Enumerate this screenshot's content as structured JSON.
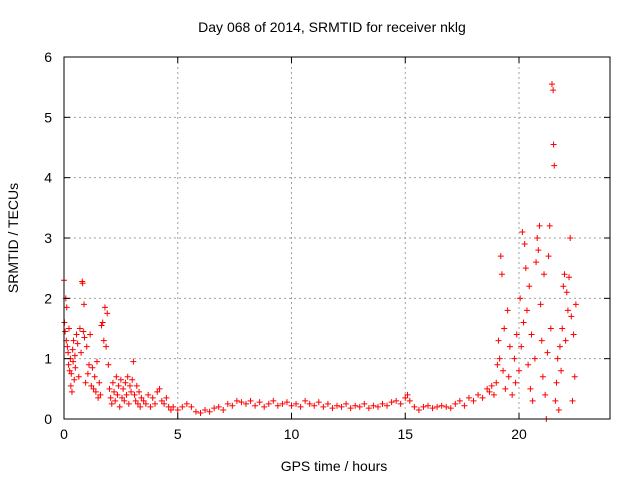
{
  "chart_data": {
    "type": "scatter",
    "title": "Day 068 of 2014, SRMTID for receiver nklg",
    "xlabel": "GPS time / hours",
    "ylabel": "SRMTID / TECUs",
    "xlim": [
      0,
      24
    ],
    "ylim": [
      0,
      6
    ],
    "xticks": [
      0,
      5,
      10,
      15,
      20
    ],
    "yticks": [
      0,
      1,
      2,
      3,
      4,
      5,
      6
    ],
    "grid": true,
    "marker": "+",
    "series": [
      {
        "name": "SRMTID",
        "color": "#ff0000",
        "points": [
          [
            0.0,
            2.3
          ],
          [
            0.02,
            1.6
          ],
          [
            0.05,
            1.45
          ],
          [
            0.08,
            2.0
          ],
          [
            0.1,
            1.3
          ],
          [
            0.12,
            1.85
          ],
          [
            0.15,
            1.2
          ],
          [
            0.18,
            1.1
          ],
          [
            0.2,
            0.9
          ],
          [
            0.22,
            1.5
          ],
          [
            0.25,
            0.8
          ],
          [
            0.28,
            1.0
          ],
          [
            0.3,
            0.55
          ],
          [
            0.32,
            0.75
          ],
          [
            0.35,
            0.45
          ],
          [
            0.38,
            1.15
          ],
          [
            0.4,
            0.95
          ],
          [
            0.42,
            1.3
          ],
          [
            0.45,
            0.65
          ],
          [
            0.48,
            1.05
          ],
          [
            0.5,
            0.85
          ],
          [
            0.55,
            1.4
          ],
          [
            0.6,
            1.25
          ],
          [
            0.65,
            0.7
          ],
          [
            0.7,
            1.5
          ],
          [
            0.75,
            1.1
          ],
          [
            0.8,
            2.28
          ],
          [
            0.82,
            2.25
          ],
          [
            0.85,
            1.45
          ],
          [
            0.88,
            1.9
          ],
          [
            0.9,
            1.35
          ],
          [
            0.95,
            0.6
          ],
          [
            1.0,
            1.2
          ],
          [
            1.05,
            0.75
          ],
          [
            1.1,
            0.9
          ],
          [
            1.15,
            1.4
          ],
          [
            1.2,
            0.55
          ],
          [
            1.25,
            0.85
          ],
          [
            1.3,
            0.5
          ],
          [
            1.35,
            0.7
          ],
          [
            1.4,
            0.45
          ],
          [
            1.45,
            0.95
          ],
          [
            1.5,
            0.35
          ],
          [
            1.55,
            0.6
          ],
          [
            1.6,
            0.4
          ],
          [
            1.65,
            1.55
          ],
          [
            1.7,
            1.6
          ],
          [
            1.75,
            1.3
          ],
          [
            1.8,
            1.85
          ],
          [
            1.85,
            1.2
          ],
          [
            1.9,
            1.75
          ],
          [
            1.95,
            0.9
          ],
          [
            2.0,
            0.5
          ],
          [
            2.05,
            0.35
          ],
          [
            2.1,
            0.25
          ],
          [
            2.15,
            0.6
          ],
          [
            2.2,
            0.45
          ],
          [
            2.25,
            0.3
          ],
          [
            2.3,
            0.7
          ],
          [
            2.35,
            0.4
          ],
          [
            2.4,
            0.55
          ],
          [
            2.45,
            0.2
          ],
          [
            2.5,
            0.65
          ],
          [
            2.55,
            0.35
          ],
          [
            2.6,
            0.5
          ],
          [
            2.65,
            0.3
          ],
          [
            2.7,
            0.6
          ],
          [
            2.75,
            0.4
          ],
          [
            2.8,
            0.7
          ],
          [
            2.85,
            0.25
          ],
          [
            2.9,
            0.55
          ],
          [
            2.95,
            0.45
          ],
          [
            3.0,
            0.65
          ],
          [
            3.05,
            0.95
          ],
          [
            3.1,
            0.4
          ],
          [
            3.15,
            0.3
          ],
          [
            3.2,
            0.55
          ],
          [
            3.25,
            0.25
          ],
          [
            3.3,
            0.45
          ],
          [
            3.35,
            0.2
          ],
          [
            3.4,
            0.35
          ],
          [
            3.5,
            0.3
          ],
          [
            3.6,
            0.25
          ],
          [
            3.7,
            0.4
          ],
          [
            3.8,
            0.2
          ],
          [
            3.9,
            0.35
          ],
          [
            4.0,
            0.25
          ],
          [
            4.1,
            0.45
          ],
          [
            4.2,
            0.5
          ],
          [
            4.3,
            0.3
          ],
          [
            4.4,
            0.25
          ],
          [
            4.5,
            0.35
          ],
          [
            4.6,
            0.2
          ],
          [
            4.7,
            0.15
          ],
          [
            4.8,
            0.2
          ],
          [
            5.0,
            0.15
          ],
          [
            5.2,
            0.2
          ],
          [
            5.4,
            0.25
          ],
          [
            5.6,
            0.2
          ],
          [
            5.8,
            0.12
          ],
          [
            6.0,
            0.1
          ],
          [
            6.2,
            0.15
          ],
          [
            6.4,
            0.12
          ],
          [
            6.6,
            0.18
          ],
          [
            6.8,
            0.2
          ],
          [
            7.0,
            0.15
          ],
          [
            7.2,
            0.25
          ],
          [
            7.4,
            0.22
          ],
          [
            7.6,
            0.3
          ],
          [
            7.8,
            0.28
          ],
          [
            8.0,
            0.25
          ],
          [
            8.2,
            0.3
          ],
          [
            8.4,
            0.22
          ],
          [
            8.6,
            0.28
          ],
          [
            8.8,
            0.2
          ],
          [
            9.0,
            0.25
          ],
          [
            9.2,
            0.3
          ],
          [
            9.4,
            0.22
          ],
          [
            9.6,
            0.25
          ],
          [
            9.8,
            0.28
          ],
          [
            10.0,
            0.22
          ],
          [
            10.2,
            0.25
          ],
          [
            10.4,
            0.2
          ],
          [
            10.6,
            0.3
          ],
          [
            10.8,
            0.25
          ],
          [
            11.0,
            0.22
          ],
          [
            11.2,
            0.28
          ],
          [
            11.4,
            0.2
          ],
          [
            11.6,
            0.25
          ],
          [
            11.8,
            0.18
          ],
          [
            12.0,
            0.22
          ],
          [
            12.2,
            0.2
          ],
          [
            12.4,
            0.25
          ],
          [
            12.6,
            0.18
          ],
          [
            12.8,
            0.22
          ],
          [
            13.0,
            0.2
          ],
          [
            13.2,
            0.25
          ],
          [
            13.4,
            0.18
          ],
          [
            13.6,
            0.22
          ],
          [
            13.8,
            0.2
          ],
          [
            14.0,
            0.25
          ],
          [
            14.2,
            0.22
          ],
          [
            14.4,
            0.28
          ],
          [
            14.6,
            0.3
          ],
          [
            14.8,
            0.25
          ],
          [
            15.0,
            0.35
          ],
          [
            15.1,
            0.4
          ],
          [
            15.2,
            0.3
          ],
          [
            15.4,
            0.2
          ],
          [
            15.6,
            0.15
          ],
          [
            15.8,
            0.2
          ],
          [
            16.0,
            0.22
          ],
          [
            16.2,
            0.18
          ],
          [
            16.4,
            0.2
          ],
          [
            16.6,
            0.22
          ],
          [
            16.8,
            0.2
          ],
          [
            17.0,
            0.18
          ],
          [
            17.2,
            0.25
          ],
          [
            17.4,
            0.3
          ],
          [
            17.6,
            0.22
          ],
          [
            17.8,
            0.35
          ],
          [
            18.0,
            0.3
          ],
          [
            18.2,
            0.4
          ],
          [
            18.4,
            0.35
          ],
          [
            18.6,
            0.5
          ],
          [
            18.7,
            0.45
          ],
          [
            18.8,
            0.55
          ],
          [
            18.9,
            0.4
          ],
          [
            19.0,
            0.6
          ],
          [
            19.05,
            0.9
          ],
          [
            19.1,
            1.3
          ],
          [
            19.15,
            1.0
          ],
          [
            19.2,
            2.7
          ],
          [
            19.25,
            2.4
          ],
          [
            19.3,
            0.8
          ],
          [
            19.35,
            1.5
          ],
          [
            19.4,
            0.5
          ],
          [
            19.5,
            1.8
          ],
          [
            19.55,
            0.7
          ],
          [
            19.6,
            1.2
          ],
          [
            19.7,
            0.4
          ],
          [
            19.8,
            1.0
          ],
          [
            19.85,
            0.6
          ],
          [
            19.9,
            1.4
          ],
          [
            20.0,
            0.8
          ],
          [
            20.05,
            2.0
          ],
          [
            20.1,
            1.2
          ],
          [
            20.15,
            3.1
          ],
          [
            20.2,
            1.6
          ],
          [
            20.25,
            2.9
          ],
          [
            20.3,
            2.5
          ],
          [
            20.35,
            1.8
          ],
          [
            20.4,
            0.9
          ],
          [
            20.45,
            2.2
          ],
          [
            20.5,
            0.5
          ],
          [
            20.55,
            1.4
          ],
          [
            20.6,
            0.3
          ],
          [
            20.7,
            1.0
          ],
          [
            20.75,
            2.6
          ],
          [
            20.8,
            3.0
          ],
          [
            20.85,
            2.8
          ],
          [
            20.9,
            3.2
          ],
          [
            20.95,
            1.9
          ],
          [
            21.0,
            1.3
          ],
          [
            21.05,
            0.7
          ],
          [
            21.1,
            2.4
          ],
          [
            21.15,
            0.4
          ],
          [
            21.2,
            0.0
          ],
          [
            21.25,
            1.1
          ],
          [
            21.3,
            2.7
          ],
          [
            21.35,
            3.2
          ],
          [
            21.4,
            1.5
          ],
          [
            21.45,
            5.55
          ],
          [
            21.5,
            5.45
          ],
          [
            21.52,
            4.55
          ],
          [
            21.55,
            4.2
          ],
          [
            21.6,
            0.3
          ],
          [
            21.65,
            0.6
          ],
          [
            21.7,
            1.0
          ],
          [
            21.75,
            0.15
          ],
          [
            21.8,
            1.2
          ],
          [
            21.85,
            0.8
          ],
          [
            21.9,
            1.5
          ],
          [
            21.95,
            2.2
          ],
          [
            22.0,
            2.4
          ],
          [
            22.05,
            1.3
          ],
          [
            22.1,
            2.1
          ],
          [
            22.15,
            1.8
          ],
          [
            22.2,
            2.35
          ],
          [
            22.25,
            3.0
          ],
          [
            22.3,
            1.7
          ],
          [
            22.35,
            0.3
          ],
          [
            22.4,
            1.4
          ],
          [
            22.45,
            0.7
          ],
          [
            22.5,
            1.9
          ]
        ]
      }
    ]
  }
}
